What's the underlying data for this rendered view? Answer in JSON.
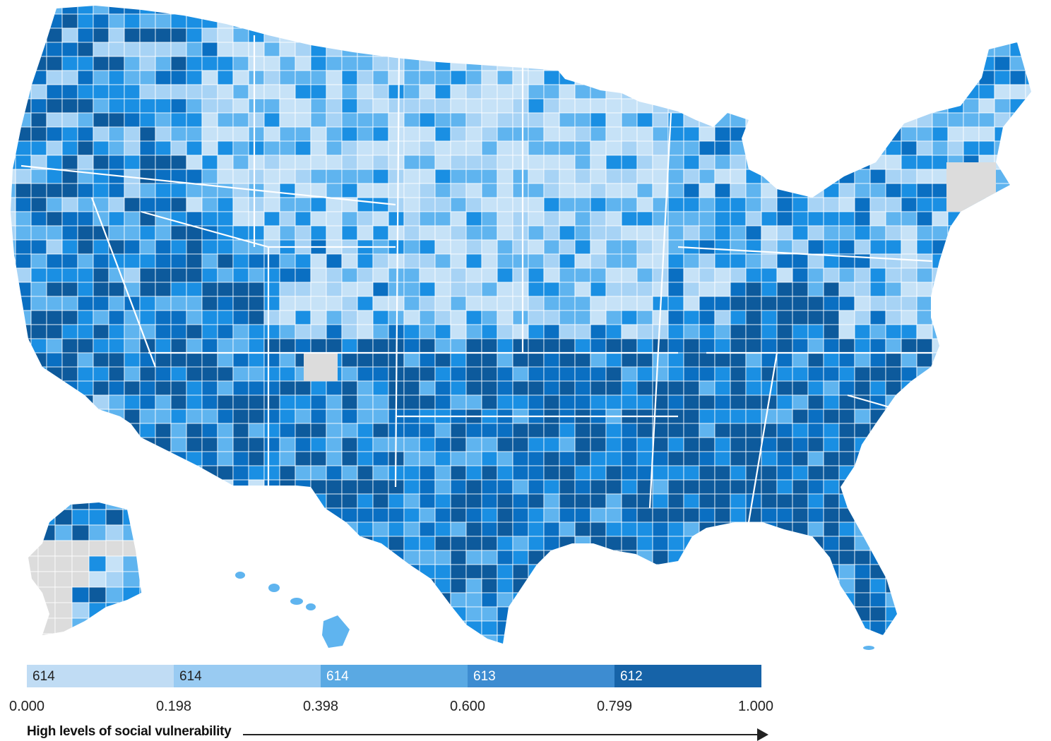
{
  "legend": {
    "bins": [
      {
        "count": "614",
        "color": "#c0dcf4"
      },
      {
        "count": "614",
        "color": "#99cbf2"
      },
      {
        "count": "614",
        "color": "#5aa9e3"
      },
      {
        "count": "613",
        "color": "#3d8cd1"
      },
      {
        "count": "612",
        "color": "#1663a8"
      }
    ],
    "ticks": [
      "0.000",
      "0.198",
      "0.398",
      "0.600",
      "0.799",
      "1.000"
    ],
    "axis_title": "High levels of social vulnerability"
  },
  "map": {
    "palette": [
      "#c6e2f7",
      "#a7d3f5",
      "#5fb4ef",
      "#1a8fe3",
      "#0a6fc2",
      "#0d5a9c"
    ],
    "no_data_color": "#dcdcdc"
  }
}
